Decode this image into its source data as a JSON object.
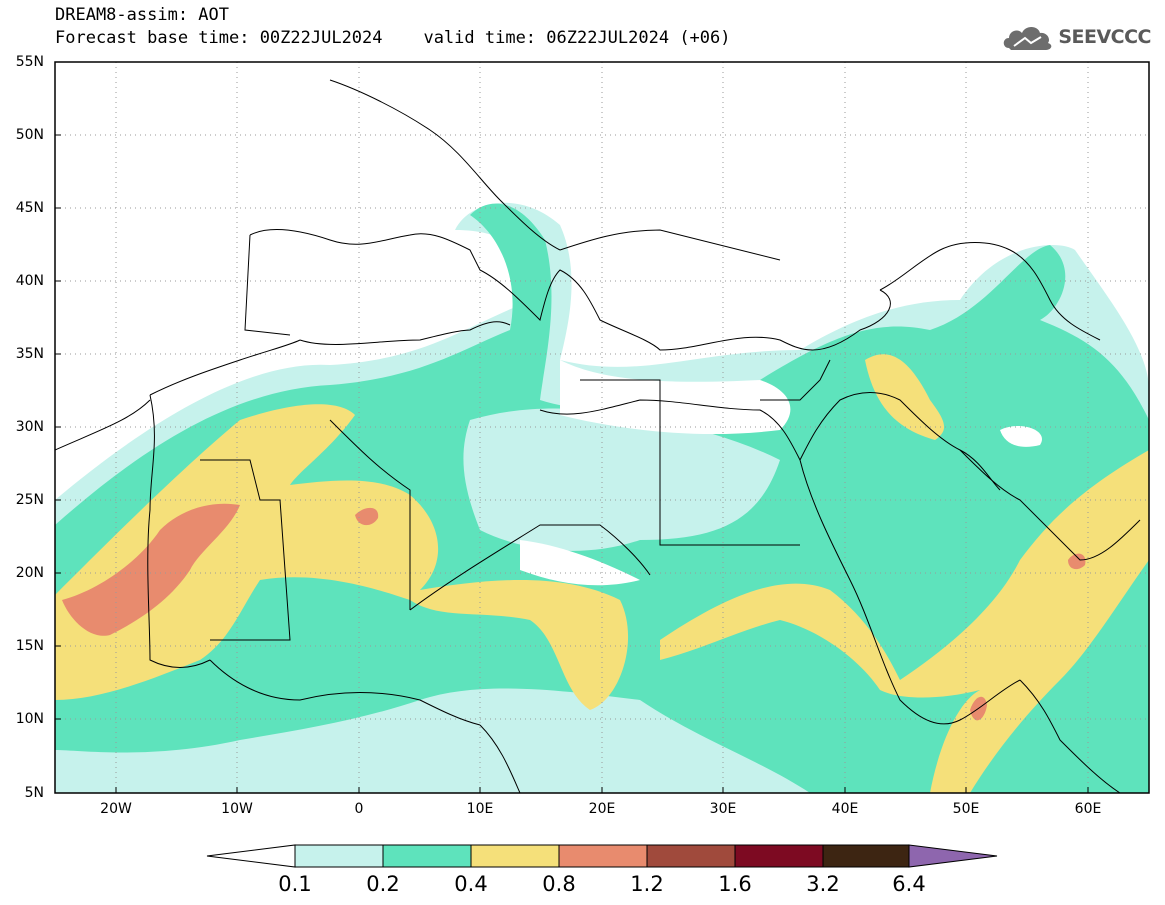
{
  "header": {
    "title_line1": "DREAM8-assim: AOT",
    "title_line2": "Forecast base time: 00Z22JUL2024    valid time: 06Z22JUL2024 (+06)",
    "logo_text": "SEEVCCC",
    "logo_icon": "cloud-icon"
  },
  "map": {
    "lat_labels": [
      "55N",
      "50N",
      "45N",
      "40N",
      "35N",
      "30N",
      "25N",
      "20N",
      "15N",
      "10N",
      "5N"
    ],
    "lon_labels": [
      "20W",
      "10W",
      "0",
      "10E",
      "20E",
      "30E",
      "40E",
      "50E",
      "60E"
    ],
    "lon_range": [
      -25,
      65
    ],
    "lat_range": [
      5,
      55
    ]
  },
  "legend": {
    "levels": [
      "0.1",
      "0.2",
      "0.4",
      "0.8",
      "1.2",
      "1.6",
      "3.2",
      "6.4"
    ],
    "colors": [
      "#c6f2ec",
      "#5ee3bc",
      "#f5e07a",
      "#e88b6e",
      "#a04a3c",
      "#7d0a22",
      "#3d2512",
      "#8e66ae"
    ],
    "under_color": "#ffffff"
  }
}
